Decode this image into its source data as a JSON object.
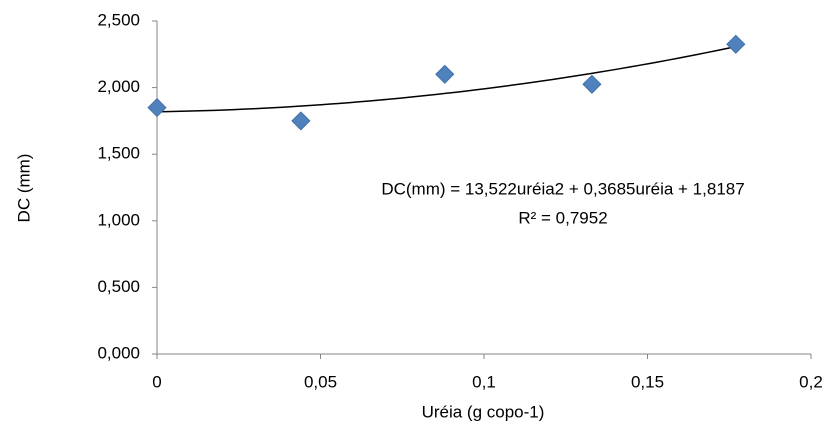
{
  "chart_data": {
    "type": "scatter",
    "x_label": "Uréia (g copo-1)",
    "y_label": "DC (mm)",
    "x": [
      0,
      0.044,
      0.088,
      0.133,
      0.177
    ],
    "values": [
      1.85,
      1.75,
      2.1,
      2.025,
      2.325
    ],
    "color": "#4f81bd",
    "xlim": [
      0,
      0.2
    ],
    "ylim": [
      0,
      2.5
    ],
    "xticks": [
      0,
      {
        "value": 0.05,
        "label": "0,05"
      },
      {
        "value": 0.1,
        "label": "0,1"
      },
      {
        "value": 0.15,
        "label": "0,15"
      },
      {
        "value": 0.2,
        "label": "0,2"
      }
    ],
    "yticks": [
      {
        "value": 0,
        "label": "0,000"
      },
      {
        "value": 0.5,
        "label": "0,500"
      },
      {
        "value": 1,
        "label": "1,000"
      },
      {
        "value": 1.5,
        "label": "1,500"
      },
      {
        "value": 2,
        "label": "2,000"
      },
      {
        "value": 2.5,
        "label": "2,500"
      }
    ],
    "grid": false,
    "trendline": {
      "type": "polynomial",
      "coefficients": [
        13.522,
        0.3685,
        1.8187
      ],
      "color": "#000000",
      "equation": "DC(mm) = 13,522uréia2 + 0,3685uréia + 1,8187",
      "r2": "R² = 0,7952"
    }
  }
}
